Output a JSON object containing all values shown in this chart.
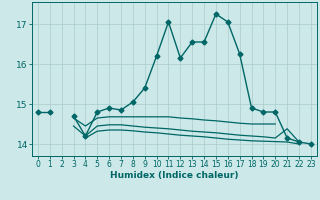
{
  "title": "",
  "xlabel": "Humidex (Indice chaleur)",
  "ylabel": "",
  "background_color": "#cce8e8",
  "grid_color": "#aacccc",
  "line_color": "#006666",
  "xlim": [
    -0.5,
    23.5
  ],
  "ylim": [
    13.7,
    17.55
  ],
  "yticks": [
    14,
    15,
    16,
    17
  ],
  "xticks": [
    0,
    1,
    2,
    3,
    4,
    5,
    6,
    7,
    8,
    9,
    10,
    11,
    12,
    13,
    14,
    15,
    16,
    17,
    18,
    19,
    20,
    21,
    22,
    23
  ],
  "series": [
    {
      "x": [
        0,
        1,
        2,
        3,
        4,
        5,
        6,
        7,
        8,
        9,
        10,
        11,
        12,
        13,
        14,
        15,
        16,
        17,
        18,
        19,
        20,
        21,
        22,
        23
      ],
      "y": [
        14.8,
        14.8,
        null,
        14.7,
        14.2,
        14.8,
        14.9,
        14.85,
        15.05,
        15.4,
        16.2,
        17.05,
        16.15,
        16.55,
        16.55,
        17.25,
        17.05,
        16.25,
        14.9,
        14.8,
        14.8,
        14.15,
        14.05,
        14.0
      ],
      "marker": "D",
      "markersize": 2.5,
      "linewidth": 1.0
    },
    {
      "x": [
        3,
        4,
        5,
        6,
        7,
        8,
        9,
        10,
        11,
        12,
        13,
        14,
        15,
        16,
        17,
        18,
        19,
        20
      ],
      "y": [
        14.65,
        14.45,
        14.65,
        14.68,
        14.68,
        14.68,
        14.68,
        14.68,
        14.68,
        14.65,
        14.63,
        14.6,
        14.58,
        14.55,
        14.52,
        14.5,
        14.5,
        14.5
      ],
      "marker": null,
      "markersize": 0,
      "linewidth": 0.9
    },
    {
      "x": [
        3,
        4,
        5,
        6,
        7,
        8,
        9,
        10,
        11,
        12,
        13,
        14,
        15,
        16,
        17,
        18,
        19,
        20,
        21,
        22
      ],
      "y": [
        14.45,
        14.2,
        14.45,
        14.48,
        14.48,
        14.45,
        14.42,
        14.4,
        14.38,
        14.35,
        14.32,
        14.3,
        14.28,
        14.25,
        14.22,
        14.2,
        14.18,
        14.15,
        14.38,
        14.05
      ],
      "marker": null,
      "markersize": 0,
      "linewidth": 0.9
    },
    {
      "x": [
        4,
        5,
        6,
        7,
        8,
        9,
        10,
        11,
        12,
        13,
        14,
        15,
        16,
        17,
        18,
        19,
        20,
        21,
        22
      ],
      "y": [
        14.15,
        14.32,
        14.35,
        14.35,
        14.33,
        14.3,
        14.28,
        14.25,
        14.22,
        14.2,
        14.18,
        14.15,
        14.12,
        14.1,
        14.08,
        14.07,
        14.06,
        14.05,
        14.0
      ],
      "marker": null,
      "markersize": 0,
      "linewidth": 0.9
    }
  ]
}
